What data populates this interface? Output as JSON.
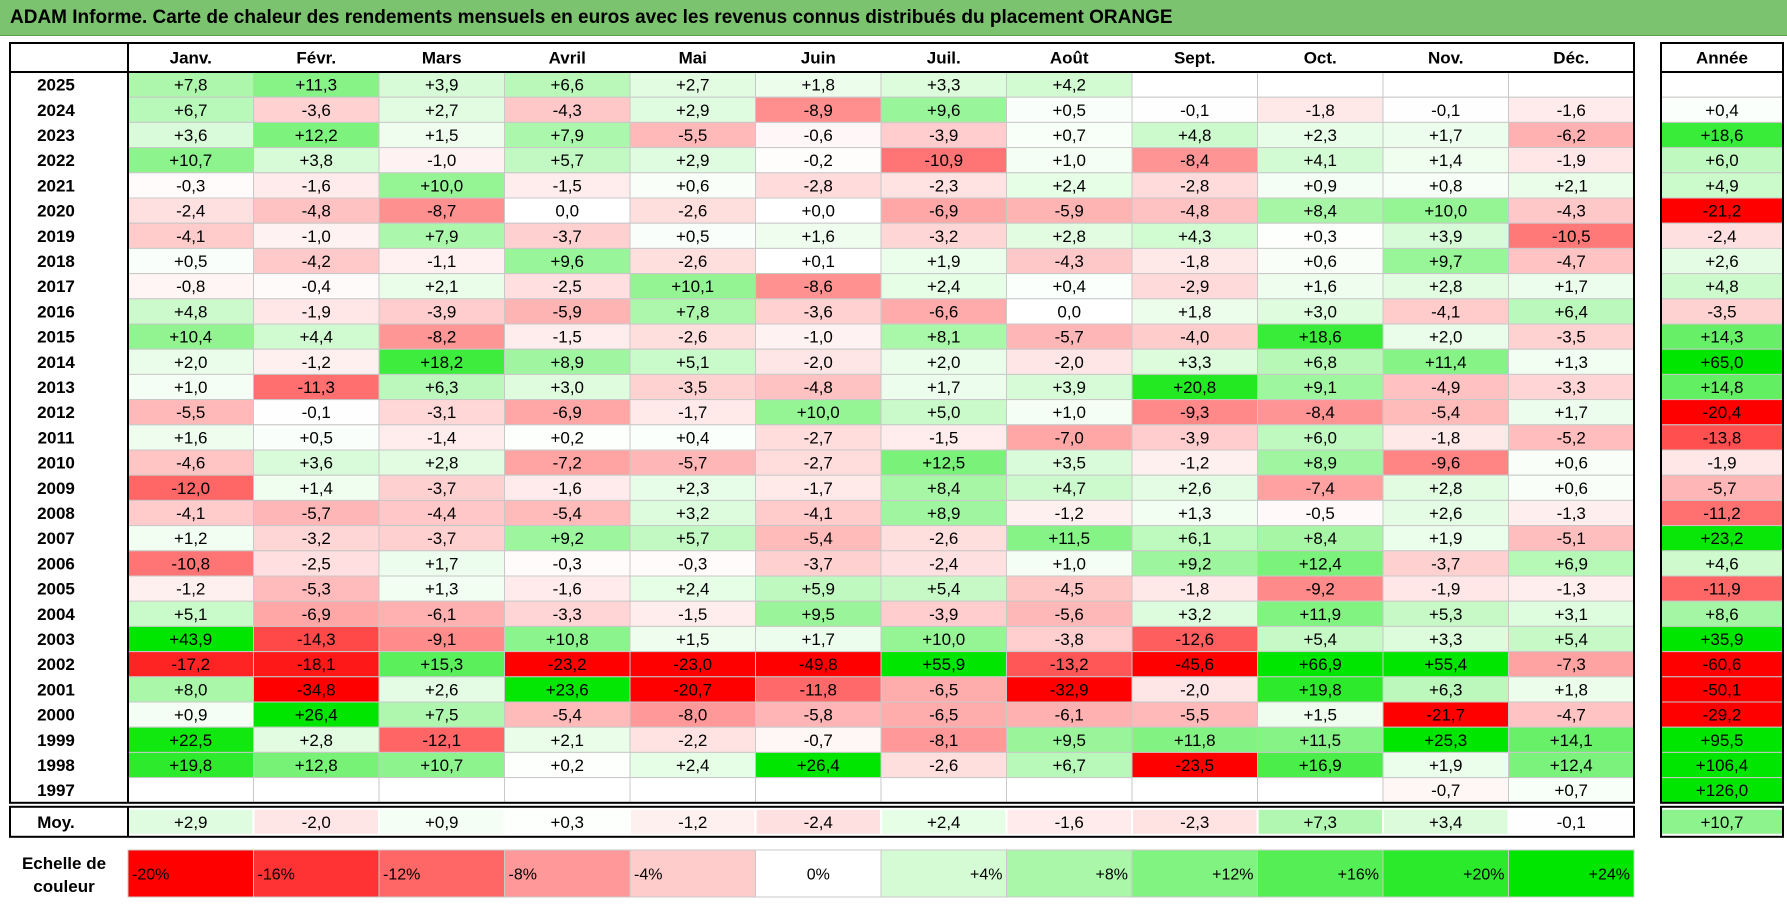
{
  "title": "ADAM Informe. Carte de chaleur des rendements mensuels en euros avec les revenus connus distribués du placement ORANGE",
  "colors": {
    "title_bg": "#7cc36f",
    "negative_max": "#ff0000",
    "neutral": "#ffffff",
    "positive_max": "#00e600",
    "grid": "#c8c8c8",
    "border": "#000000"
  },
  "chart_data": {
    "type": "heatmap",
    "months": [
      "Janv.",
      "Févr.",
      "Mars",
      "Avril",
      "Mai",
      "Juin",
      "Juil.",
      "Août",
      "Sept.",
      "Oct.",
      "Nov.",
      "Déc."
    ],
    "annual_header": "Année",
    "rows": [
      {
        "year": "2025",
        "months": [
          "+7,8",
          "+11,3",
          "+3,9",
          "+6,6",
          "+2,7",
          "+1,8",
          "+3,3",
          "+4,2",
          "",
          "",
          "",
          ""
        ],
        "annual": ""
      },
      {
        "year": "2024",
        "months": [
          "+6,7",
          "-3,6",
          "+2,7",
          "-4,3",
          "+2,9",
          "-8,9",
          "+9,6",
          "+0,5",
          "-0,1",
          "-1,8",
          "-0,1",
          "-1,6"
        ],
        "annual": "+0,4"
      },
      {
        "year": "2023",
        "months": [
          "+3,6",
          "+12,2",
          "+1,5",
          "+7,9",
          "-5,5",
          "-0,6",
          "-3,9",
          "+0,7",
          "+4,8",
          "+2,3",
          "+1,7",
          "-6,2"
        ],
        "annual": "+18,6"
      },
      {
        "year": "2022",
        "months": [
          "+10,7",
          "+3,8",
          "-1,0",
          "+5,7",
          "+2,9",
          "-0,2",
          "-10,9",
          "+1,0",
          "-8,4",
          "+4,1",
          "+1,4",
          "-1,9"
        ],
        "annual": "+6,0"
      },
      {
        "year": "2021",
        "months": [
          "-0,3",
          "-1,6",
          "+10,0",
          "-1,5",
          "+0,6",
          "-2,8",
          "-2,3",
          "+2,4",
          "-2,8",
          "+0,9",
          "+0,8",
          "+2,1"
        ],
        "annual": "+4,9"
      },
      {
        "year": "2020",
        "months": [
          "-2,4",
          "-4,8",
          "-8,7",
          "0,0",
          "-2,6",
          "+0,0",
          "-6,9",
          "-5,9",
          "-4,8",
          "+8,4",
          "+10,0",
          "-4,3"
        ],
        "annual": "-21,2"
      },
      {
        "year": "2019",
        "months": [
          "-4,1",
          "-1,0",
          "+7,9",
          "-3,7",
          "+0,5",
          "+1,6",
          "-3,2",
          "+2,8",
          "+4,3",
          "+0,3",
          "+3,9",
          "-10,5"
        ],
        "annual": "-2,4"
      },
      {
        "year": "2018",
        "months": [
          "+0,5",
          "-4,2",
          "-1,1",
          "+9,6",
          "-2,6",
          "+0,1",
          "+1,9",
          "-4,3",
          "-1,8",
          "+0,6",
          "+9,7",
          "-4,7"
        ],
        "annual": "+2,6"
      },
      {
        "year": "2017",
        "months": [
          "-0,8",
          "-0,4",
          "+2,1",
          "-2,5",
          "+10,1",
          "-8,6",
          "+2,4",
          "+0,4",
          "-2,9",
          "+1,6",
          "+2,8",
          "+1,7"
        ],
        "annual": "+4,8"
      },
      {
        "year": "2016",
        "months": [
          "+4,8",
          "-1,9",
          "-3,9",
          "-5,9",
          "+7,8",
          "-3,6",
          "-6,6",
          "0,0",
          "+1,8",
          "+3,0",
          "-4,1",
          "+6,4"
        ],
        "annual": "-3,5"
      },
      {
        "year": "2015",
        "months": [
          "+10,4",
          "+4,4",
          "-8,2",
          "-1,5",
          "-2,6",
          "-1,0",
          "+8,1",
          "-5,7",
          "-4,0",
          "+18,6",
          "+2,0",
          "-3,5"
        ],
        "annual": "+14,3"
      },
      {
        "year": "2014",
        "months": [
          "+2,0",
          "-1,2",
          "+18,2",
          "+8,9",
          "+5,1",
          "-2,0",
          "+2,0",
          "-2,0",
          "+3,3",
          "+6,8",
          "+11,4",
          "+1,3"
        ],
        "annual": "+65,0"
      },
      {
        "year": "2013",
        "months": [
          "+1,0",
          "-11,3",
          "+6,3",
          "+3,0",
          "-3,5",
          "-4,8",
          "+1,7",
          "+3,9",
          "+20,8",
          "+9,1",
          "-4,9",
          "-3,3"
        ],
        "annual": "+14,8"
      },
      {
        "year": "2012",
        "months": [
          "-5,5",
          "-0,1",
          "-3,1",
          "-6,9",
          "-1,7",
          "+10,0",
          "+5,0",
          "+1,0",
          "-9,3",
          "-8,4",
          "-5,4",
          "+1,7"
        ],
        "annual": "-20,4"
      },
      {
        "year": "2011",
        "months": [
          "+1,6",
          "+0,5",
          "-1,4",
          "+0,2",
          "+0,4",
          "-2,7",
          "-1,5",
          "-7,0",
          "-3,9",
          "+6,0",
          "-1,8",
          "-5,2"
        ],
        "annual": "-13,8"
      },
      {
        "year": "2010",
        "months": [
          "-4,6",
          "+3,6",
          "+2,8",
          "-7,2",
          "-5,7",
          "-2,7",
          "+12,5",
          "+3,5",
          "-1,2",
          "+8,9",
          "-9,6",
          "+0,6"
        ],
        "annual": "-1,9"
      },
      {
        "year": "2009",
        "months": [
          "-12,0",
          "+1,4",
          "-3,7",
          "-1,6",
          "+2,3",
          "-1,7",
          "+8,4",
          "+4,7",
          "+2,6",
          "-7,4",
          "+2,8",
          "+0,6"
        ],
        "annual": "-5,7"
      },
      {
        "year": "2008",
        "months": [
          "-4,1",
          "-5,7",
          "-4,4",
          "-5,4",
          "+3,2",
          "-4,1",
          "+8,9",
          "-1,2",
          "+1,3",
          "-0,5",
          "+2,6",
          "-1,3"
        ],
        "annual": "-11,2"
      },
      {
        "year": "2007",
        "months": [
          "+1,2",
          "-3,2",
          "-3,7",
          "+9,2",
          "+5,7",
          "-5,4",
          "-2,6",
          "+11,5",
          "+6,1",
          "+8,4",
          "+1,9",
          "-5,1"
        ],
        "annual": "+23,2"
      },
      {
        "year": "2006",
        "months": [
          "-10,8",
          "-2,5",
          "+1,7",
          "-0,3",
          "-0,3",
          "-3,7",
          "-2,4",
          "+1,0",
          "+9,2",
          "+12,4",
          "-3,7",
          "+6,9"
        ],
        "annual": "+4,6"
      },
      {
        "year": "2005",
        "months": [
          "-1,2",
          "-5,3",
          "+1,3",
          "-1,6",
          "+2,4",
          "+5,9",
          "+5,4",
          "-4,5",
          "-1,8",
          "-9,2",
          "-1,9",
          "-1,3"
        ],
        "annual": "-11,9"
      },
      {
        "year": "2004",
        "months": [
          "+5,1",
          "-6,9",
          "-6,1",
          "-3,3",
          "-1,5",
          "+9,5",
          "-3,9",
          "-5,6",
          "+3,2",
          "+11,9",
          "+5,3",
          "+3,1"
        ],
        "annual": "+8,6"
      },
      {
        "year": "2003",
        "months": [
          "+43,9",
          "-14,3",
          "-9,1",
          "+10,8",
          "+1,5",
          "+1,7",
          "+10,0",
          "-3,8",
          "-12,6",
          "+5,4",
          "+3,3",
          "+5,4"
        ],
        "annual": "+35,9"
      },
      {
        "year": "2002",
        "months": [
          "-17,2",
          "-18,1",
          "+15,3",
          "-23,2",
          "-23,0",
          "-49,8",
          "+55,9",
          "-13,2",
          "-45,6",
          "+66,9",
          "+55,4",
          "-7,3"
        ],
        "annual": "-60,6"
      },
      {
        "year": "2001",
        "months": [
          "+8,0",
          "-34,8",
          "+2,6",
          "+23,6",
          "-20,7",
          "-11,8",
          "-6,5",
          "-32,9",
          "-2,0",
          "+19,8",
          "+6,3",
          "+1,8"
        ],
        "annual": "-50,1"
      },
      {
        "year": "2000",
        "months": [
          "+0,9",
          "+26,4",
          "+7,5",
          "-5,4",
          "-8,0",
          "-5,8",
          "-6,5",
          "-6,1",
          "-5,5",
          "+1,5",
          "-21,7",
          "-4,7"
        ],
        "annual": "-29,2"
      },
      {
        "year": "1999",
        "months": [
          "+22,5",
          "+2,8",
          "-12,1",
          "+2,1",
          "-2,2",
          "-0,7",
          "-8,1",
          "+9,5",
          "+11,8",
          "+11,5",
          "+25,3",
          "+14,1"
        ],
        "annual": "+95,5"
      },
      {
        "year": "1998",
        "months": [
          "+19,8",
          "+12,8",
          "+10,7",
          "+0,2",
          "+2,4",
          "+26,4",
          "-2,6",
          "+6,7",
          "-23,5",
          "+16,9",
          "+1,9",
          "+12,4"
        ],
        "annual": "+106,4"
      },
      {
        "year": "1997",
        "months": [
          "",
          "",
          "",
          "",
          "",
          "",
          "",
          "",
          "",
          "",
          "-0,7",
          "+0,7"
        ],
        "annual": "+126,0"
      }
    ],
    "average": {
      "label": "Moy.",
      "months": [
        "+2,9",
        "-2,0",
        "+0,9",
        "+0,3",
        "-1,2",
        "-2,4",
        "+2,4",
        "-1,6",
        "-2,3",
        "+7,3",
        "+3,4",
        "-0,1"
      ],
      "annual": "+10,7"
    },
    "color_scale": {
      "label_line1": "Echelle de",
      "label_line2": "couleur",
      "steps": [
        {
          "label": "-20%",
          "value": -20
        },
        {
          "label": "-16%",
          "value": -16
        },
        {
          "label": "-12%",
          "value": -12
        },
        {
          "label": "-8%",
          "value": -8
        },
        {
          "label": "-4%",
          "value": -4
        },
        {
          "label": "0%",
          "value": 0
        },
        {
          "label": "+4%",
          "value": 4
        },
        {
          "label": "+8%",
          "value": 8
        },
        {
          "label": "+12%",
          "value": 12
        },
        {
          "label": "+16%",
          "value": 16
        },
        {
          "label": "+20%",
          "value": 20
        },
        {
          "label": "+24%",
          "value": 24
        }
      ]
    }
  }
}
